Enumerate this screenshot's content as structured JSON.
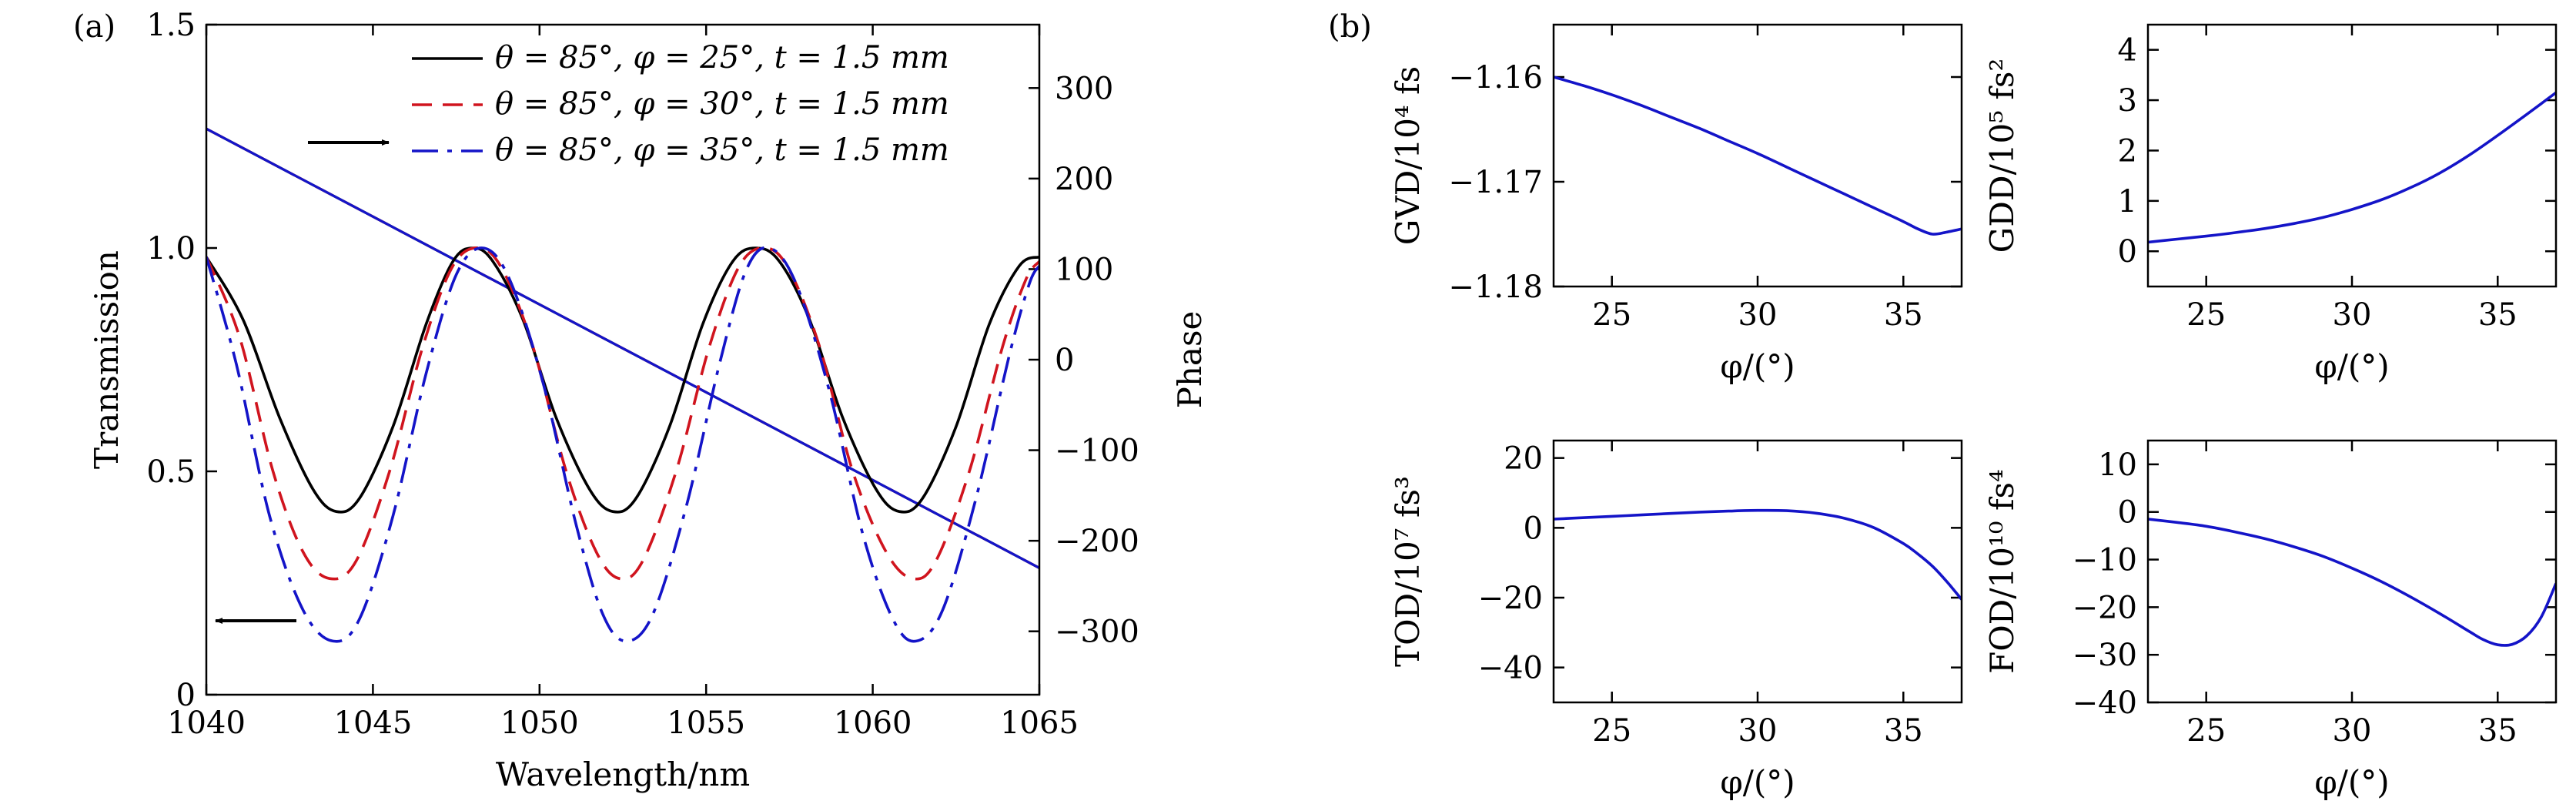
{
  "panel_a": {
    "tag": "(a)",
    "arrow_right_label": "",
    "arrow_left_label": ""
  },
  "panel_b": {
    "tag": "(b)"
  },
  "chart_data": [
    {
      "id": "a",
      "type": "line",
      "xlabel": "Wavelength/nm",
      "ylabel": "Transmission",
      "y2label": "Phase",
      "xlim": [
        1040,
        1065
      ],
      "ylim": [
        0,
        1.5
      ],
      "y2lim": [
        -370,
        370
      ],
      "xticks": [
        1040,
        1045,
        1050,
        1055,
        1060,
        1065
      ],
      "yticks": [
        0,
        0.5,
        1.0,
        1.5
      ],
      "ytick_labels": [
        "0",
        "0.5",
        "1.0",
        "1.5"
      ],
      "y2ticks": [
        -300,
        -200,
        -100,
        0,
        100,
        200,
        300
      ],
      "y2tick_labels": [
        "−300",
        "−200",
        "−100",
        "0",
        "100",
        "200",
        "300"
      ],
      "grid": false,
      "legend_position": "top-right",
      "series": [
        {
          "name": "θ = 85°, φ = 25°, t = 1.5 mm",
          "color": "#000000",
          "dash": "solid",
          "x": [
            1040,
            1041.1,
            1042.2,
            1043.2,
            1043.9,
            1044.6,
            1045.6,
            1046.6,
            1047.4,
            1048.0,
            1048.6,
            1049.5,
            1050.5,
            1051.5,
            1052.2,
            1052.9,
            1053.9,
            1054.9,
            1055.8,
            1056.5,
            1057.2,
            1058.1,
            1059.1,
            1060.1,
            1060.8,
            1061.5,
            1062.5,
            1063.5,
            1064.4,
            1065
          ],
          "y": [
            0.98,
            0.84,
            0.62,
            0.46,
            0.41,
            0.44,
            0.6,
            0.83,
            0.97,
            1.0,
            0.97,
            0.84,
            0.62,
            0.46,
            0.41,
            0.44,
            0.6,
            0.83,
            0.97,
            1.0,
            0.97,
            0.84,
            0.62,
            0.46,
            0.41,
            0.44,
            0.6,
            0.83,
            0.96,
            0.98
          ]
        },
        {
          "name": "θ = 85°, φ = 30°, t = 1.5 mm",
          "color": "#d0141e",
          "dash": "dash",
          "x": [
            1040,
            1041.0,
            1042.0,
            1042.9,
            1043.7,
            1044.5,
            1045.5,
            1046.5,
            1047.4,
            1048.2,
            1048.9,
            1049.8,
            1050.8,
            1051.7,
            1052.4,
            1053.1,
            1054.1,
            1055.1,
            1056.0,
            1056.8,
            1057.5,
            1058.4,
            1059.4,
            1060.4,
            1061.2,
            1061.9,
            1062.9,
            1063.9,
            1064.6,
            1065
          ],
          "y": [
            0.98,
            0.8,
            0.5,
            0.32,
            0.26,
            0.3,
            0.5,
            0.78,
            0.96,
            1.0,
            0.95,
            0.78,
            0.5,
            0.32,
            0.26,
            0.3,
            0.5,
            0.78,
            0.96,
            1.0,
            0.95,
            0.78,
            0.5,
            0.32,
            0.26,
            0.3,
            0.5,
            0.78,
            0.93,
            0.97
          ]
        },
        {
          "name": "θ = 85°, φ = 35°, t = 1.5 mm",
          "color": "#1414c8",
          "dash": "dashdot",
          "x": [
            1040,
            1040.9,
            1041.9,
            1042.9,
            1043.8,
            1044.6,
            1045.6,
            1046.6,
            1047.5,
            1048.3,
            1049.1,
            1050.1,
            1051.1,
            1051.9,
            1052.6,
            1053.4,
            1054.4,
            1055.4,
            1056.2,
            1056.9,
            1057.7,
            1058.7,
            1059.7,
            1060.6,
            1061.3,
            1062.1,
            1063.1,
            1064.1,
            1064.7,
            1065
          ],
          "y": [
            0.98,
            0.74,
            0.4,
            0.19,
            0.12,
            0.17,
            0.4,
            0.72,
            0.94,
            1.0,
            0.93,
            0.7,
            0.38,
            0.18,
            0.12,
            0.18,
            0.42,
            0.74,
            0.95,
            1.0,
            0.92,
            0.68,
            0.36,
            0.17,
            0.12,
            0.19,
            0.44,
            0.76,
            0.92,
            0.96
          ]
        }
      ],
      "phase_series": [
        {
          "color": "#000000",
          "dash": "solid",
          "x": [
            1040,
            1065
          ],
          "y": [
            255,
            -230
          ]
        },
        {
          "color": "#d0141e",
          "dash": "dash",
          "x": [
            1040,
            1065
          ],
          "y": [
            255,
            -230
          ]
        },
        {
          "color": "#1414c8",
          "dash": "solid",
          "x": [
            1040,
            1065
          ],
          "y": [
            255,
            -230
          ]
        }
      ]
    },
    {
      "id": "b1",
      "type": "line",
      "xlabel": "φ/(°)",
      "ylabel": "GVD/10⁴ fs",
      "xlim": [
        23,
        37
      ],
      "ylim": [
        -1.18,
        -1.155
      ],
      "xticks": [
        25,
        30,
        35
      ],
      "yticks": [
        -1.18,
        -1.17,
        -1.16
      ],
      "ytick_labels": [
        "−1.18",
        "−1.17",
        "−1.16"
      ],
      "series": [
        {
          "color": "#1414c8",
          "x": [
            23,
            24,
            25,
            26,
            27,
            28,
            29,
            30,
            31,
            32,
            33,
            34,
            35,
            35.5,
            36,
            36.5,
            37
          ],
          "y": [
            -1.16,
            -1.1608,
            -1.1617,
            -1.1627,
            -1.1638,
            -1.1649,
            -1.1661,
            -1.1673,
            -1.1686,
            -1.1699,
            -1.1712,
            -1.1725,
            -1.1738,
            -1.1745,
            -1.175,
            -1.1748,
            -1.1745
          ]
        }
      ]
    },
    {
      "id": "b2",
      "type": "line",
      "xlabel": "φ/(°)",
      "ylabel": "GDD/10⁵ fs²",
      "xlim": [
        23,
        37
      ],
      "ylim": [
        -0.7,
        4.5
      ],
      "xticks": [
        25,
        30,
        35
      ],
      "yticks": [
        0,
        1,
        2,
        3,
        4
      ],
      "ytick_labels": [
        "0",
        "1",
        "2",
        "3",
        "4"
      ],
      "series": [
        {
          "color": "#1414c8",
          "x": [
            23,
            24,
            25,
            26,
            27,
            28,
            29,
            30,
            31,
            32,
            33,
            34,
            35,
            36,
            37
          ],
          "y": [
            0.18,
            0.24,
            0.3,
            0.37,
            0.45,
            0.55,
            0.67,
            0.83,
            1.02,
            1.26,
            1.55,
            1.9,
            2.3,
            2.72,
            3.15
          ]
        }
      ]
    },
    {
      "id": "b3",
      "type": "line",
      "xlabel": "φ/(°)",
      "ylabel": "TOD/10⁷ fs³",
      "xlim": [
        23,
        37
      ],
      "ylim": [
        -50,
        25
      ],
      "xticks": [
        25,
        30,
        35
      ],
      "yticks": [
        -40,
        -20,
        0,
        20
      ],
      "ytick_labels": [
        "−40",
        "−20",
        "0",
        "20"
      ],
      "series": [
        {
          "color": "#1414c8",
          "x": [
            23,
            24,
            25,
            26,
            27,
            28,
            29,
            30,
            31,
            32,
            33,
            34,
            35,
            35.5,
            36,
            36.5,
            37
          ],
          "y": [
            2.5,
            2.9,
            3.3,
            3.7,
            4.1,
            4.5,
            4.8,
            5.0,
            4.9,
            4.2,
            2.7,
            0.0,
            -4.5,
            -7.5,
            -11.0,
            -15.5,
            -20.5
          ]
        }
      ]
    },
    {
      "id": "b4",
      "type": "line",
      "xlabel": "φ/(°)",
      "ylabel": "FOD/10¹⁰ fs⁴",
      "xlim": [
        23,
        37
      ],
      "ylim": [
        -40,
        15
      ],
      "xticks": [
        25,
        30,
        35
      ],
      "yticks": [
        -40,
        -30,
        -20,
        -10,
        0,
        10
      ],
      "ytick_labels": [
        "−40",
        "−30",
        "−20",
        "−10",
        "0",
        "10"
      ],
      "series": [
        {
          "color": "#1414c8",
          "x": [
            23,
            24,
            25,
            26,
            27,
            28,
            29,
            30,
            31,
            32,
            33,
            34,
            34.5,
            35,
            35.5,
            36,
            36.5,
            37
          ],
          "y": [
            -1.5,
            -2.2,
            -3.0,
            -4.2,
            -5.6,
            -7.3,
            -9.3,
            -11.8,
            -14.6,
            -17.8,
            -21.3,
            -25.0,
            -26.8,
            -27.9,
            -27.8,
            -26.0,
            -22.0,
            -15.0
          ]
        }
      ]
    }
  ]
}
